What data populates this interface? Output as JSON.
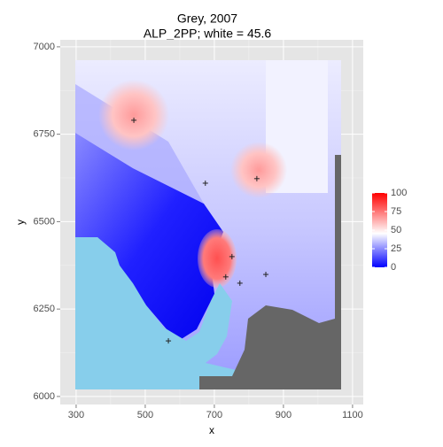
{
  "chart_data": {
    "type": "raster",
    "title": "Grey, 2007",
    "subtitle": "ALP_2PP; white = 45.6",
    "x_label": "x",
    "y_label": "y",
    "xlim": [
      254,
      1131
    ],
    "ylim": [
      5977,
      7020
    ],
    "xticks": [
      300,
      500,
      700,
      900,
      1100
    ],
    "yticks": [
      6000,
      6250,
      6500,
      6750,
      7000
    ],
    "grid": true,
    "points": {
      "x": [
        467,
        823,
        567,
        674,
        751,
        733,
        774,
        849
      ],
      "y": [
        6790,
        6623,
        6159,
        6610,
        6400,
        6342,
        6324,
        6349
      ]
    },
    "legend": {
      "lim": [
        0,
        100
      ],
      "ticks": [
        0,
        25,
        50,
        75,
        100
      ],
      "midpoint": 45.6,
      "low": "#0000ff",
      "mid": "#ffffff",
      "high": "#ff0000"
    }
  }
}
